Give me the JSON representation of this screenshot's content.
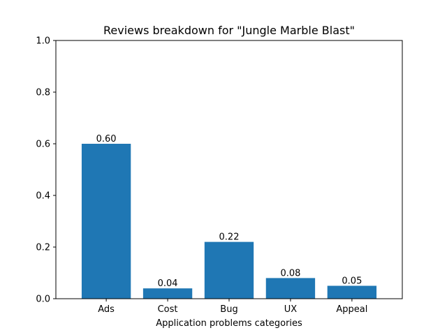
{
  "chart_data": {
    "type": "bar",
    "title": "Reviews breakdown for \"Jungle Marble Blast\"",
    "xlabel": "Application problems categories",
    "ylabel": "",
    "categories": [
      "Ads",
      "Cost",
      "Bug",
      "UX",
      "Appeal"
    ],
    "values": [
      0.6,
      0.04,
      0.22,
      0.08,
      0.05
    ],
    "data_labels": [
      "0.60",
      "0.04",
      "0.22",
      "0.08",
      "0.05"
    ],
    "ylim": [
      0,
      1
    ],
    "yticks": [
      0.0,
      0.2,
      0.4,
      0.6,
      0.8,
      1.0
    ],
    "ytick_labels": [
      "0.0",
      "0.2",
      "0.4",
      "0.6",
      "0.8",
      "1.0"
    ],
    "grid": false,
    "colors": {
      "bar": "#1f77b4",
      "axis": "#000000"
    }
  }
}
